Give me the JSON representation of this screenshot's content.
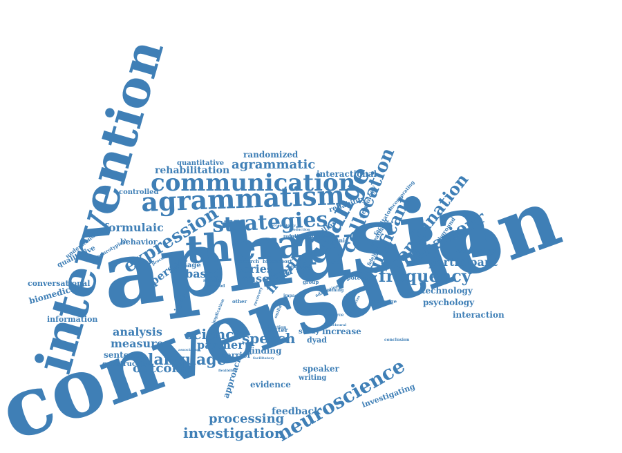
{
  "color": "#3f7fb6",
  "words": [
    {
      "key": "conversation",
      "text": "conversation"
    },
    {
      "key": "aphasia",
      "text": "aphasia"
    },
    {
      "key": "intervention",
      "text": "intervention"
    },
    {
      "key": "therapy",
      "text": "therapy"
    },
    {
      "key": "agrammatism",
      "text": "agrammatism"
    },
    {
      "key": "communication",
      "text": "communication"
    },
    {
      "key": "strategies",
      "text": "strategies"
    },
    {
      "key": "expression",
      "text": "expression"
    },
    {
      "key": "change",
      "text": "change"
    },
    {
      "key": "collocation",
      "text": "collocation"
    },
    {
      "key": "significant",
      "text": "significant"
    },
    {
      "key": "combination",
      "text": "combination"
    },
    {
      "key": "behaviour",
      "text": "behaviour"
    },
    {
      "key": "neuroscience",
      "text": "neuroscience"
    },
    {
      "key": "frequency",
      "text": "frequency"
    },
    {
      "key": "language",
      "text": "language"
    },
    {
      "key": "investigation",
      "text": "investigation"
    },
    {
      "key": "agrammatic",
      "text": "agrammatic"
    },
    {
      "key": "science",
      "text": "science"
    },
    {
      "key": "speech",
      "text": "speech"
    },
    {
      "key": "fluent",
      "text": "fluent"
    },
    {
      "key": "person",
      "text": "person"
    },
    {
      "key": "participant",
      "text": "participant"
    },
    {
      "key": "formulaic",
      "text": "formulaic"
    },
    {
      "key": "processing",
      "text": "processing"
    },
    {
      "key": "outcome",
      "text": "outcome"
    },
    {
      "key": "measure",
      "text": "measure"
    },
    {
      "key": "analysis",
      "text": "analysis"
    },
    {
      "key": "partner",
      "text": "partner"
    },
    {
      "key": "series",
      "text": "series"
    },
    {
      "key": "case",
      "text": "case"
    },
    {
      "key": "word",
      "text": "word"
    },
    {
      "key": "based",
      "text": "based"
    },
    {
      "key": "rehabilitation",
      "text": "rehabilitation"
    },
    {
      "key": "randomized",
      "text": "randomized"
    },
    {
      "key": "feedback",
      "text": "feedback"
    },
    {
      "key": "technology",
      "text": "technology"
    },
    {
      "key": "psychology",
      "text": "psychology"
    },
    {
      "key": "interaction",
      "text": "interaction"
    },
    {
      "key": "interactional",
      "text": "interactional"
    },
    {
      "key": "biomedicine",
      "text": "biomedicine"
    },
    {
      "key": "conversational",
      "text": "conversational"
    },
    {
      "key": "information",
      "text": "information"
    },
    {
      "key": "sentence",
      "text": "sentence"
    },
    {
      "key": "construction",
      "text": "construction"
    },
    {
      "key": "behavior",
      "text": "behavior"
    },
    {
      "key": "controlled",
      "text": "controlled"
    },
    {
      "key": "quantitative",
      "text": "quantitative"
    },
    {
      "key": "qualitative",
      "text": "qualitative"
    },
    {
      "key": "understanding",
      "text": "understanding"
    },
    {
      "key": "neurotypical",
      "text": "neurotypical"
    },
    {
      "key": "increase",
      "text": "increase"
    },
    {
      "key": "finding",
      "text": "finding"
    },
    {
      "key": "barrier",
      "text": "barrier"
    },
    {
      "key": "dyad",
      "text": "dyad"
    },
    {
      "key": "speaker",
      "text": "speaker"
    },
    {
      "key": "writing",
      "text": "writing"
    },
    {
      "key": "evidence",
      "text": "evidence"
    },
    {
      "key": "approach",
      "text": "approach"
    },
    {
      "key": "investigating",
      "text": "investigating"
    },
    {
      "key": "connected",
      "text": "connected"
    },
    {
      "key": "reliability",
      "text": "reliability"
    },
    {
      "key": "familiar",
      "text": "familiar"
    },
    {
      "key": "neurology",
      "text": "neurology"
    },
    {
      "key": "facilitator",
      "text": "facilitator"
    },
    {
      "key": "treatment",
      "text": "treatment"
    },
    {
      "key": "fidelity",
      "text": "fidelity"
    },
    {
      "key": "incorporating",
      "text": "incorporating"
    },
    {
      "key": "background",
      "text": "background"
    },
    {
      "key": "video",
      "text": "video"
    },
    {
      "key": "usage",
      "text": "usage"
    },
    {
      "key": "stroke",
      "text": "stroke"
    },
    {
      "key": "utterance",
      "text": "utterance"
    },
    {
      "key": "chronic",
      "text": "chronic"
    },
    {
      "key": "study",
      "text": "study"
    },
    {
      "key": "better",
      "text": "better"
    },
    {
      "key": "broca",
      "text": "broca"
    },
    {
      "key": "result",
      "text": "result"
    },
    {
      "key": "potential",
      "text": "potential"
    },
    {
      "key": "challenge",
      "text": "challenge"
    },
    {
      "key": "conclusion",
      "text": "conclusion"
    },
    {
      "key": "research",
      "text": "research"
    },
    {
      "key": "report",
      "text": "report"
    },
    {
      "key": "social",
      "text": "social"
    },
    {
      "key": "group",
      "text": "group"
    },
    {
      "key": "function",
      "text": "function"
    },
    {
      "key": "reduction",
      "text": "reduction"
    },
    {
      "key": "training",
      "text": "training"
    },
    {
      "key": "acceptability",
      "text": "acceptability"
    },
    {
      "key": "production",
      "text": "production"
    },
    {
      "key": "evaluation",
      "text": "evaluation"
    },
    {
      "key": "different",
      "text": "different"
    },
    {
      "key": "sample",
      "text": "sample"
    },
    {
      "key": "other",
      "text": "other"
    },
    {
      "key": "method",
      "text": "method"
    },
    {
      "key": "implication",
      "text": "implication"
    },
    {
      "key": "procedure",
      "text": "procedure"
    },
    {
      "key": "association",
      "text": "association"
    },
    {
      "key": "flexibility",
      "text": "flexibility"
    },
    {
      "key": "adaptation",
      "text": "adaptation"
    },
    {
      "key": "resource",
      "text": "resource"
    },
    {
      "key": "behavioural",
      "text": "behavioural"
    },
    {
      "key": "progression",
      "text": "progression"
    },
    {
      "key": "recovery",
      "text": "recovery"
    },
    {
      "key": "facilitatory",
      "text": "facilitatory"
    },
    {
      "key": "impact",
      "text": "impact"
    },
    {
      "key": "enhance",
      "text": "enhance"
    },
    {
      "key": "outline",
      "text": "outline"
    }
  ]
}
